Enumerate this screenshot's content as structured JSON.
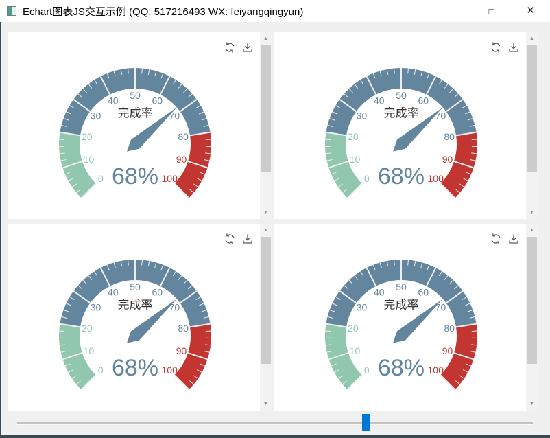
{
  "window": {
    "title": "Echart图表JS交互示例 (QQ: 517216493 WX: feiyangqingyun)",
    "controls": {
      "minimize": "—",
      "maximize": "□",
      "close": "×"
    }
  },
  "icons": {
    "scroll_up": "▲",
    "scroll_down": "▼"
  },
  "theme": {
    "titlebar_bg": "#ffffff",
    "content_bg": "#f0f0f0",
    "panel_bg": "#ffffff",
    "accent_blue": "#0078d7",
    "scrollbar_track": "#f2f2f2",
    "scrollbar_thumb": "#cccccc",
    "toolbox_icon": "#595959",
    "taskbar_strip": "#3c4a54"
  },
  "slider": {
    "min": 0,
    "max": 100,
    "value": 68,
    "handle_color": "#0078d7"
  },
  "chart_data": [
    {
      "type": "gauge",
      "title": "完成率",
      "value": 68,
      "display_value": "68%",
      "min": 0,
      "max": 100,
      "start_angle": 225,
      "end_angle": -45,
      "major_tick_interval": 10,
      "minor_tick_interval": 2,
      "tick_labels": [
        "0",
        "10",
        "20",
        "30",
        "40",
        "50",
        "60",
        "70",
        "80",
        "90",
        "100"
      ],
      "segments": [
        {
          "from": 0,
          "to": 20,
          "color": "#91c7ae"
        },
        {
          "from": 20,
          "to": 80,
          "color": "#63869e"
        },
        {
          "from": 80,
          "to": 100,
          "color": "#c23531"
        }
      ],
      "needle_color": "#63869e",
      "value_color": "#63869e",
      "title_color": "#333333",
      "tick_color": "#eeeeee",
      "toolbox": [
        "restore",
        "save-as-image"
      ]
    },
    {
      "type": "gauge",
      "title": "完成率",
      "value": 68,
      "display_value": "68%",
      "min": 0,
      "max": 100,
      "start_angle": 225,
      "end_angle": -45,
      "major_tick_interval": 10,
      "minor_tick_interval": 2,
      "tick_labels": [
        "0",
        "10",
        "20",
        "30",
        "40",
        "50",
        "60",
        "70",
        "80",
        "90",
        "100"
      ],
      "segments": [
        {
          "from": 0,
          "to": 20,
          "color": "#91c7ae"
        },
        {
          "from": 20,
          "to": 80,
          "color": "#63869e"
        },
        {
          "from": 80,
          "to": 100,
          "color": "#c23531"
        }
      ],
      "needle_color": "#63869e",
      "value_color": "#63869e",
      "title_color": "#333333",
      "tick_color": "#eeeeee",
      "toolbox": [
        "restore",
        "save-as-image"
      ]
    },
    {
      "type": "gauge",
      "title": "完成率",
      "value": 68,
      "display_value": "68%",
      "min": 0,
      "max": 100,
      "start_angle": 225,
      "end_angle": -45,
      "major_tick_interval": 10,
      "minor_tick_interval": 2,
      "tick_labels": [
        "0",
        "10",
        "20",
        "30",
        "40",
        "50",
        "60",
        "70",
        "80",
        "90",
        "100"
      ],
      "segments": [
        {
          "from": 0,
          "to": 20,
          "color": "#91c7ae"
        },
        {
          "from": 20,
          "to": 80,
          "color": "#63869e"
        },
        {
          "from": 80,
          "to": 100,
          "color": "#c23531"
        }
      ],
      "needle_color": "#63869e",
      "value_color": "#63869e",
      "title_color": "#333333",
      "tick_color": "#eeeeee",
      "toolbox": [
        "restore",
        "save-as-image"
      ]
    },
    {
      "type": "gauge",
      "title": "完成率",
      "value": 68,
      "display_value": "68%",
      "min": 0,
      "max": 100,
      "start_angle": 225,
      "end_angle": -45,
      "major_tick_interval": 10,
      "minor_tick_interval": 2,
      "tick_labels": [
        "0",
        "10",
        "20",
        "30",
        "40",
        "50",
        "60",
        "70",
        "80",
        "90",
        "100"
      ],
      "segments": [
        {
          "from": 0,
          "to": 20,
          "color": "#91c7ae"
        },
        {
          "from": 20,
          "to": 80,
          "color": "#63869e"
        },
        {
          "from": 80,
          "to": 100,
          "color": "#c23531"
        }
      ],
      "needle_color": "#63869e",
      "value_color": "#63869e",
      "title_color": "#333333",
      "tick_color": "#eeeeee",
      "toolbox": [
        "restore",
        "save-as-image"
      ]
    }
  ]
}
